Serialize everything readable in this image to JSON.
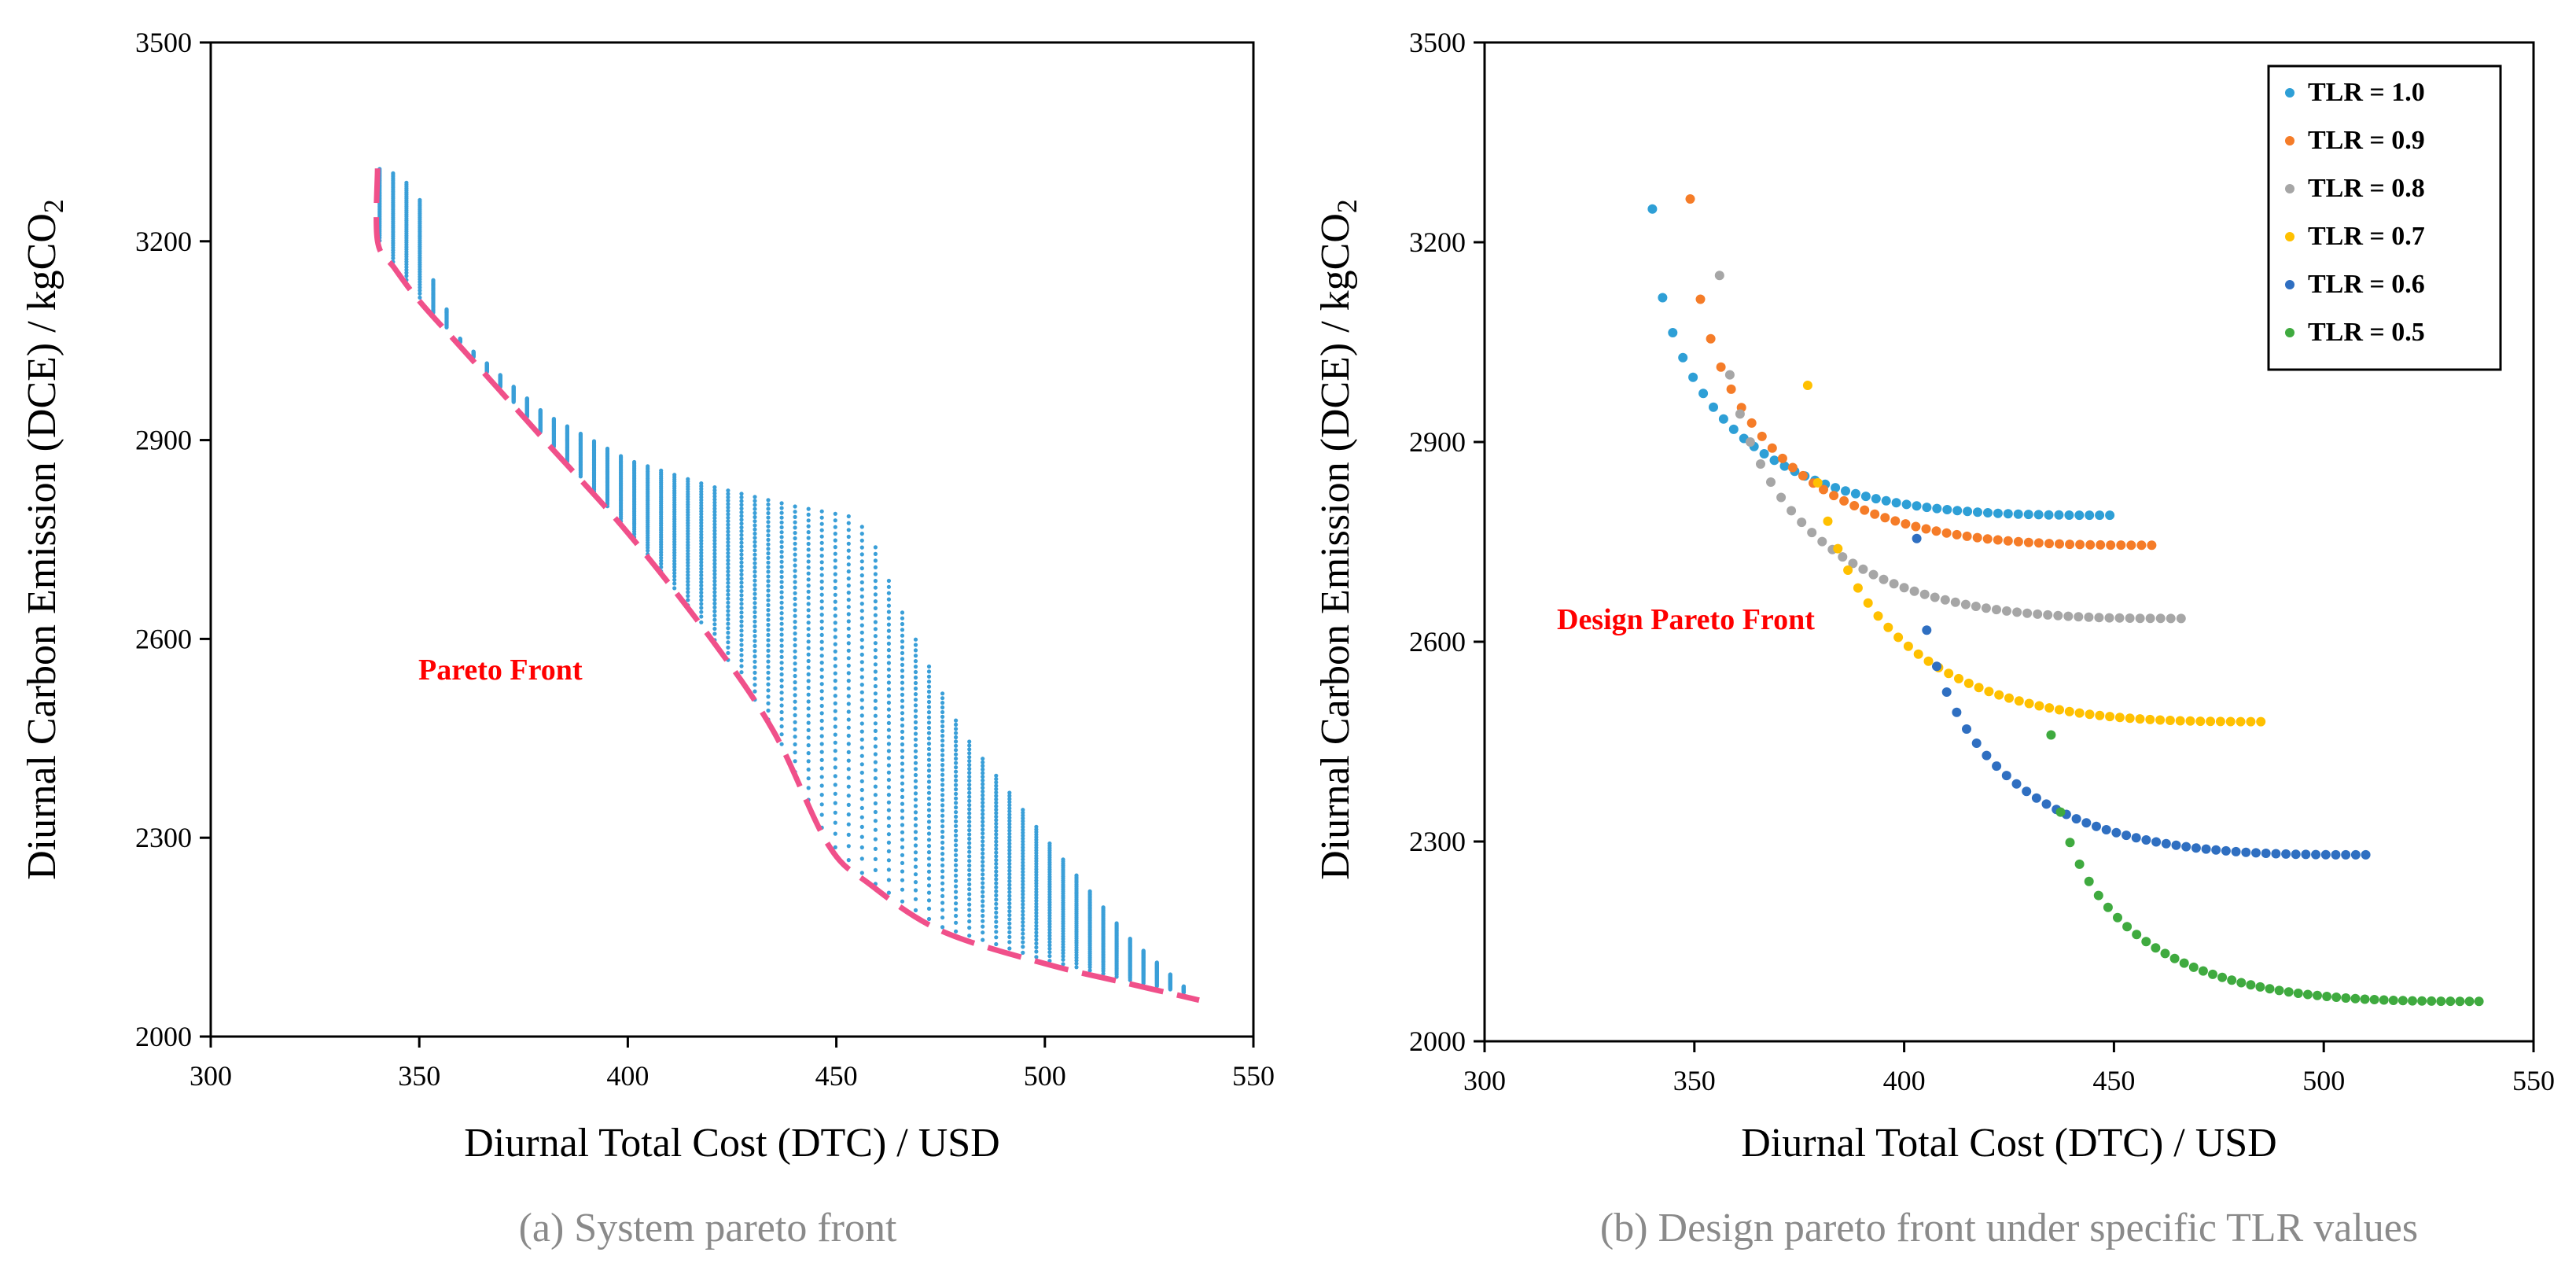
{
  "chart_data": [
    {
      "type": "scatter",
      "panel": "a",
      "caption": "(a) System pareto front",
      "xlabel": "Diurnal Total Cost (DTC) / USD",
      "ylabel_main": "Diurnal Carbon Emission (DCE) / kgCO",
      "ylabel_sub": "2",
      "xlim": [
        300,
        550
      ],
      "ylim": [
        2000,
        3500
      ],
      "xticks": [
        "300",
        "350",
        "400",
        "450",
        "500",
        "550"
      ],
      "yticks": [
        "2000",
        "2300",
        "2600",
        "2900",
        "3200",
        "3500"
      ],
      "annotation": "Pareto Front",
      "point_color": "#3a9fd8",
      "front_color": "#f0508a",
      "pareto_front": [
        [
          340,
          3310
        ],
        [
          340,
          3200
        ],
        [
          344,
          3160
        ],
        [
          350,
          3110
        ],
        [
          360,
          3040
        ],
        [
          380,
          2900
        ],
        [
          400,
          2760
        ],
        [
          420,
          2600
        ],
        [
          435,
          2460
        ],
        [
          448,
          2290
        ],
        [
          458,
          2230
        ],
        [
          475,
          2160
        ],
        [
          500,
          2110
        ],
        [
          520,
          2080
        ],
        [
          537,
          2055
        ]
      ],
      "cloud_upper_boundary": [
        [
          340,
          3310
        ],
        [
          345,
          3300
        ],
        [
          350,
          3270
        ],
        [
          352,
          3160
        ],
        [
          360,
          3050
        ],
        [
          380,
          2940
        ],
        [
          400,
          2870
        ],
        [
          420,
          2830
        ],
        [
          440,
          2800
        ],
        [
          453,
          2785
        ],
        [
          458,
          2760
        ],
        [
          465,
          2650
        ],
        [
          480,
          2460
        ],
        [
          500,
          2300
        ],
        [
          520,
          2150
        ],
        [
          537,
          2055
        ]
      ]
    },
    {
      "type": "scatter",
      "panel": "b",
      "caption": "(b) Design pareto front under specific TLR values",
      "xlabel": "Diurnal Total Cost (DTC) / USD",
      "ylabel_main": "Diurnal Carbon Emission (DCE) / kgCO",
      "ylabel_sub": "2",
      "xlim": [
        300,
        550
      ],
      "ylim": [
        2000,
        3500
      ],
      "xticks": [
        "300",
        "350",
        "400",
        "450",
        "500",
        "550"
      ],
      "yticks": [
        "2000",
        "2300",
        "2600",
        "2900",
        "3200",
        "3500"
      ],
      "annotation": "Design Pareto Front",
      "legend_position": "top-right",
      "series": [
        {
          "name": "TLR = 1.0",
          "color": "#2e9fd6",
          "start": [
            340,
            3250
          ],
          "end": [
            449,
            2790
          ],
          "curvature": 0.75
        },
        {
          "name": "TLR = 0.9",
          "color": "#f57c28",
          "start": [
            349,
            3265
          ],
          "end": [
            459,
            2745
          ],
          "curvature": 0.75
        },
        {
          "name": "TLR = 0.8",
          "color": "#a6a6a6",
          "start": [
            356,
            3150
          ],
          "end": [
            466,
            2635
          ],
          "curvature": 0.75
        },
        {
          "name": "TLR = 0.7",
          "color": "#ffc000",
          "start": [
            377,
            2985
          ],
          "end": [
            485,
            2480
          ],
          "curvature": 0.75
        },
        {
          "name": "TLR = 0.6",
          "color": "#2f6fc1",
          "start": [
            403,
            2755
          ],
          "end": [
            510,
            2280
          ],
          "curvature": 0.75
        },
        {
          "name": "TLR = 0.5",
          "color": "#3faa3f",
          "start": [
            435,
            2460
          ],
          "end": [
            537,
            2060
          ],
          "curvature": 0.75
        }
      ]
    }
  ]
}
